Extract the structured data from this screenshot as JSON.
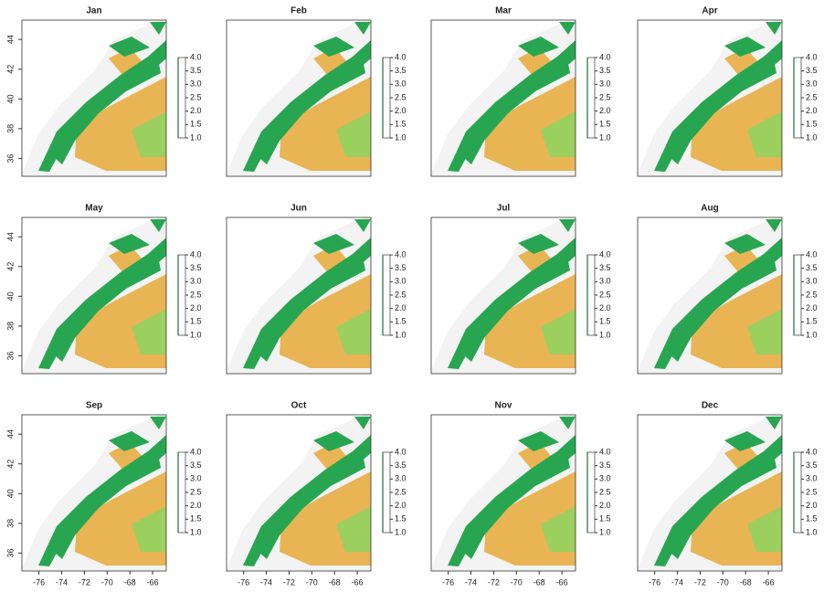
{
  "chart_data": [
    {
      "type": "raster-map",
      "title": "Jan",
      "ylim": [
        34.8,
        45.3
      ],
      "yticks": [
        36,
        38,
        40,
        42,
        44
      ],
      "colorbar": {
        "lim": [
          1,
          4
        ],
        "ticks": [
          {
            "value": 1,
            "label": "1.0"
          },
          {
            "value": 1.5,
            "label": "1.5"
          },
          {
            "value": 2,
            "label": "2.0"
          },
          {
            "value": 2.5,
            "label": "2.5"
          },
          {
            "value": 3,
            "label": "3.0"
          },
          {
            "value": 3.5,
            "label": "3.5"
          },
          {
            "value": 4,
            "label": "4.0"
          }
        ]
      }
    },
    {
      "type": "raster-map",
      "title": "Feb",
      "colorbar": {
        "lim": [
          1,
          4
        ],
        "ticks": [
          {
            "value": 1,
            "label": "1.0"
          },
          {
            "value": 1.5,
            "label": "1.5"
          },
          {
            "value": 2,
            "label": "2.0"
          },
          {
            "value": 2.5,
            "label": "2.5"
          },
          {
            "value": 3,
            "label": "3.0"
          },
          {
            "value": 3.5,
            "label": "3.5"
          },
          {
            "value": 4,
            "label": "4.0"
          }
        ]
      }
    },
    {
      "type": "raster-map",
      "title": "Mar",
      "colorbar": {
        "lim": [
          1,
          4
        ],
        "ticks": [
          {
            "value": 1,
            "label": "1.0"
          },
          {
            "value": 1.5,
            "label": "1.5"
          },
          {
            "value": 2,
            "label": "2.0"
          },
          {
            "value": 2.5,
            "label": "2.5"
          },
          {
            "value": 3,
            "label": "3.0"
          },
          {
            "value": 3.5,
            "label": "3.5"
          },
          {
            "value": 4,
            "label": "4.0"
          }
        ]
      }
    },
    {
      "type": "raster-map",
      "title": "Apr",
      "colorbar": {
        "lim": [
          1,
          4
        ],
        "ticks": [
          {
            "value": 1,
            "label": "1.0"
          },
          {
            "value": 1.5,
            "label": "1.5"
          },
          {
            "value": 2,
            "label": "2.0"
          },
          {
            "value": 2.5,
            "label": "2.5"
          },
          {
            "value": 3,
            "label": "3.0"
          },
          {
            "value": 3.5,
            "label": "3.5"
          },
          {
            "value": 4,
            "label": "4.0"
          }
        ]
      }
    },
    {
      "type": "raster-map",
      "title": "May",
      "ylim": [
        34.8,
        45.3
      ],
      "yticks": [
        36,
        38,
        40,
        42,
        44
      ],
      "colorbar": {
        "lim": [
          1,
          4
        ],
        "ticks": [
          {
            "value": 1,
            "label": "1.0"
          },
          {
            "value": 1.5,
            "label": "1.5"
          },
          {
            "value": 2,
            "label": "2.0"
          },
          {
            "value": 2.5,
            "label": "2.5"
          },
          {
            "value": 3,
            "label": "3.0"
          },
          {
            "value": 3.5,
            "label": "3.5"
          },
          {
            "value": 4,
            "label": "4.0"
          }
        ]
      }
    },
    {
      "type": "raster-map",
      "title": "Jun",
      "colorbar": {
        "lim": [
          1,
          4
        ],
        "ticks": [
          {
            "value": 1,
            "label": "1.0"
          },
          {
            "value": 1.5,
            "label": "1.5"
          },
          {
            "value": 2,
            "label": "2.0"
          },
          {
            "value": 2.5,
            "label": "2.5"
          },
          {
            "value": 3,
            "label": "3.0"
          },
          {
            "value": 3.5,
            "label": "3.5"
          },
          {
            "value": 4,
            "label": "4.0"
          }
        ]
      }
    },
    {
      "type": "raster-map",
      "title": "Jul",
      "colorbar": {
        "lim": [
          1,
          4
        ],
        "ticks": [
          {
            "value": 1,
            "label": "1.0"
          },
          {
            "value": 1.5,
            "label": "1.5"
          },
          {
            "value": 2,
            "label": "2.0"
          },
          {
            "value": 2.5,
            "label": "2.5"
          },
          {
            "value": 3,
            "label": "3.0"
          },
          {
            "value": 3.5,
            "label": "3.5"
          },
          {
            "value": 4,
            "label": "4.0"
          }
        ]
      }
    },
    {
      "type": "raster-map",
      "title": "Aug",
      "colorbar": {
        "lim": [
          1,
          4
        ],
        "ticks": [
          {
            "value": 1,
            "label": "1.0"
          },
          {
            "value": 1.5,
            "label": "1.5"
          },
          {
            "value": 2,
            "label": "2.0"
          },
          {
            "value": 2.5,
            "label": "2.5"
          },
          {
            "value": 3,
            "label": "3.0"
          },
          {
            "value": 3.5,
            "label": "3.5"
          },
          {
            "value": 4,
            "label": "4.0"
          }
        ]
      }
    },
    {
      "type": "raster-map",
      "title": "Sep",
      "xlim": [
        -77.5,
        -64.8
      ],
      "xticks": [
        -76,
        -74,
        -72,
        -70,
        -68,
        -66
      ],
      "ylim": [
        34.8,
        45.3
      ],
      "yticks": [
        36,
        38,
        40,
        42,
        44
      ],
      "colorbar": {
        "lim": [
          1,
          4
        ],
        "ticks": [
          {
            "value": 1,
            "label": "1.0"
          },
          {
            "value": 1.5,
            "label": "1.5"
          },
          {
            "value": 2,
            "label": "2.0"
          },
          {
            "value": 2.5,
            "label": "2.5"
          },
          {
            "value": 3,
            "label": "3.0"
          },
          {
            "value": 3.5,
            "label": "3.5"
          },
          {
            "value": 4,
            "label": "4.0"
          }
        ]
      }
    },
    {
      "type": "raster-map",
      "title": "Oct",
      "xlim": [
        -77.5,
        -64.8
      ],
      "xticks": [
        -76,
        -74,
        -72,
        -70,
        -68,
        -66
      ],
      "colorbar": {
        "lim": [
          1,
          4
        ],
        "ticks": [
          {
            "value": 1,
            "label": "1.0"
          },
          {
            "value": 1.5,
            "label": "1.5"
          },
          {
            "value": 2,
            "label": "2.0"
          },
          {
            "value": 2.5,
            "label": "2.5"
          },
          {
            "value": 3,
            "label": "3.0"
          },
          {
            "value": 3.5,
            "label": "3.5"
          },
          {
            "value": 4,
            "label": "4.0"
          }
        ]
      }
    },
    {
      "type": "raster-map",
      "title": "Nov",
      "xlim": [
        -77.5,
        -64.8
      ],
      "xticks": [
        -76,
        -74,
        -72,
        -70,
        -68,
        -66
      ],
      "colorbar": {
        "lim": [
          1,
          4
        ],
        "ticks": [
          {
            "value": 1,
            "label": "1.0"
          },
          {
            "value": 1.5,
            "label": "1.5"
          },
          {
            "value": 2,
            "label": "2.0"
          },
          {
            "value": 2.5,
            "label": "2.5"
          },
          {
            "value": 3,
            "label": "3.0"
          },
          {
            "value": 3.5,
            "label": "3.5"
          },
          {
            "value": 4,
            "label": "4.0"
          }
        ]
      }
    },
    {
      "type": "raster-map",
      "title": "Dec",
      "xlim": [
        -77.5,
        -64.8
      ],
      "xticks": [
        -76,
        -74,
        -72,
        -70,
        -68,
        -66
      ],
      "colorbar": {
        "lim": [
          1,
          4
        ],
        "ticks": [
          {
            "value": 1,
            "label": "1.0"
          },
          {
            "value": 1.5,
            "label": "1.5"
          },
          {
            "value": 2,
            "label": "2.0"
          },
          {
            "value": 2.5,
            "label": "2.5"
          },
          {
            "value": 3,
            "label": "3.0"
          },
          {
            "value": 3.5,
            "label": "3.5"
          },
          {
            "value": 4,
            "label": "4.0"
          }
        ]
      }
    }
  ]
}
